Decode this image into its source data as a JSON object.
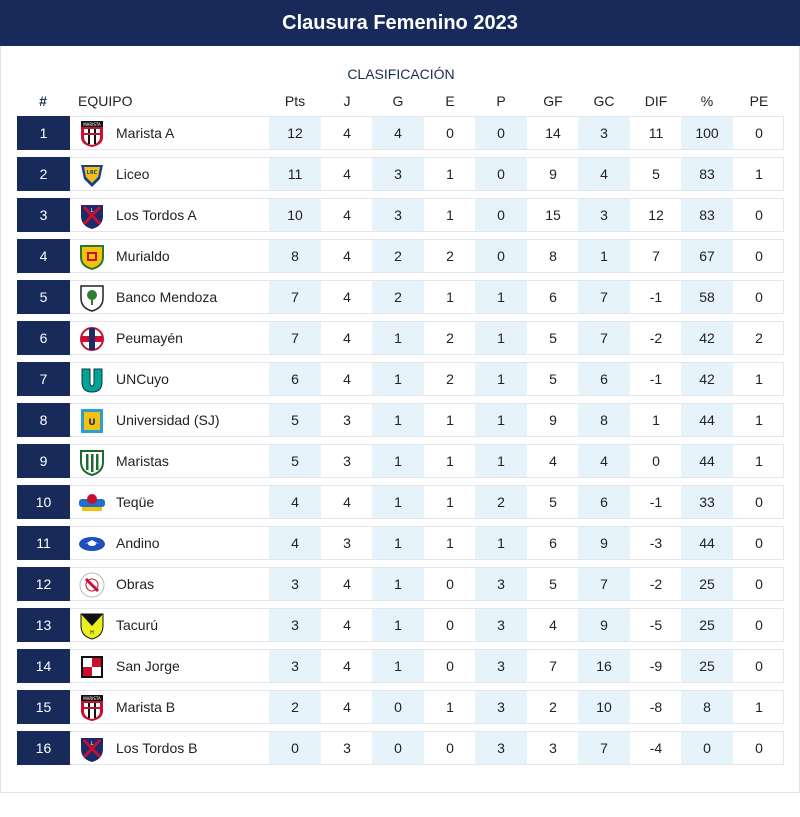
{
  "title": "Clausura Femenino 2023",
  "subtitle": "CLASIFICACIÓN",
  "columns": [
    "#",
    "EQUIPO",
    "Pts",
    "J",
    "G",
    "E",
    "P",
    "GF",
    "GC",
    "DIF",
    "%",
    "PE"
  ],
  "rows": [
    {
      "rank": "1",
      "team": "Marista A",
      "logo": "marista-crest-icon",
      "stats": [
        "12",
        "4",
        "4",
        "0",
        "0",
        "14",
        "3",
        "11",
        "100",
        "0"
      ]
    },
    {
      "rank": "2",
      "team": "Liceo",
      "logo": "liceo-crest-icon",
      "stats": [
        "11",
        "4",
        "3",
        "1",
        "0",
        "9",
        "4",
        "5",
        "83",
        "1"
      ]
    },
    {
      "rank": "3",
      "team": "Los Tordos A",
      "logo": "los-tordos-crest-icon",
      "stats": [
        "10",
        "4",
        "3",
        "1",
        "0",
        "15",
        "3",
        "12",
        "83",
        "0"
      ]
    },
    {
      "rank": "4",
      "team": "Murialdo",
      "logo": "murialdo-crest-icon",
      "stats": [
        "8",
        "4",
        "2",
        "2",
        "0",
        "8",
        "1",
        "7",
        "67",
        "0"
      ]
    },
    {
      "rank": "5",
      "team": "Banco Mendoza",
      "logo": "banco-mendoza-crest-icon",
      "stats": [
        "7",
        "4",
        "2",
        "1",
        "1",
        "6",
        "7",
        "-1",
        "58",
        "0"
      ]
    },
    {
      "rank": "6",
      "team": "Peumayén",
      "logo": "peumayen-crest-icon",
      "stats": [
        "7",
        "4",
        "1",
        "2",
        "1",
        "5",
        "7",
        "-2",
        "42",
        "2"
      ]
    },
    {
      "rank": "7",
      "team": "UNCuyo",
      "logo": "uncuyo-crest-icon",
      "stats": [
        "6",
        "4",
        "1",
        "2",
        "1",
        "5",
        "6",
        "-1",
        "42",
        "1"
      ]
    },
    {
      "rank": "8",
      "team": "Universidad (SJ)",
      "logo": "universidad-sj-crest-icon",
      "stats": [
        "5",
        "3",
        "1",
        "1",
        "1",
        "9",
        "8",
        "1",
        "44",
        "1"
      ]
    },
    {
      "rank": "9",
      "team": "Maristas",
      "logo": "maristas-crest-icon",
      "stats": [
        "5",
        "3",
        "1",
        "1",
        "1",
        "4",
        "4",
        "0",
        "44",
        "1"
      ]
    },
    {
      "rank": "10",
      "team": "Teqüe",
      "logo": "teque-crest-icon",
      "stats": [
        "4",
        "4",
        "1",
        "1",
        "2",
        "5",
        "6",
        "-1",
        "33",
        "0"
      ]
    },
    {
      "rank": "11",
      "team": "Andino",
      "logo": "andino-crest-icon",
      "stats": [
        "4",
        "3",
        "1",
        "1",
        "1",
        "6",
        "9",
        "-3",
        "44",
        "0"
      ]
    },
    {
      "rank": "12",
      "team": "Obras",
      "logo": "obras-crest-icon",
      "stats": [
        "3",
        "4",
        "1",
        "0",
        "3",
        "5",
        "7",
        "-2",
        "25",
        "0"
      ]
    },
    {
      "rank": "13",
      "team": "Tacurú",
      "logo": "tacuru-crest-icon",
      "stats": [
        "3",
        "4",
        "1",
        "0",
        "3",
        "4",
        "9",
        "-5",
        "25",
        "0"
      ]
    },
    {
      "rank": "14",
      "team": "San Jorge",
      "logo": "san-jorge-crest-icon",
      "stats": [
        "3",
        "4",
        "1",
        "0",
        "3",
        "7",
        "16",
        "-9",
        "25",
        "0"
      ]
    },
    {
      "rank": "15",
      "team": "Marista B",
      "logo": "marista-crest-icon",
      "stats": [
        "2",
        "4",
        "0",
        "1",
        "3",
        "2",
        "10",
        "-8",
        "8",
        "1"
      ]
    },
    {
      "rank": "16",
      "team": "Los Tordos B",
      "logo": "los-tordos-crest-icon",
      "stats": [
        "0",
        "3",
        "0",
        "0",
        "3",
        "3",
        "7",
        "-4",
        "0",
        "0"
      ]
    }
  ],
  "colors": {
    "navy": "#172a5a",
    "highlight": "#e6f3fa",
    "border": "#e3e6ec"
  }
}
